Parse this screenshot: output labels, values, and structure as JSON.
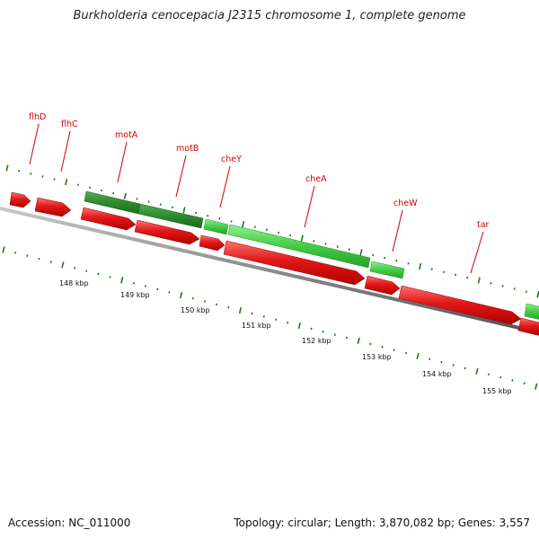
{
  "title": "Burkholderia cenocepacia J2315 chromosome 1, complete genome",
  "footer": {
    "accession": "Accession: NC_011000",
    "summary": "Topology: circular; Length: 3,870,082 bp; Genes: 3,557"
  },
  "colors": {
    "forward_dark": "#2f8a2f",
    "forward_light": "#44cc44",
    "reverse": "#e01818",
    "backbone": "#808080",
    "tick": "#1a7a1a",
    "label": "#d00000"
  },
  "kbp_labels": [
    "148 kbp",
    "149 kbp",
    "150 kbp",
    "151 kbp",
    "152 kbp",
    "153 kbp",
    "154 kbp",
    "155 kbp"
  ],
  "genes": [
    {
      "name": "flhD",
      "strand": "reverse"
    },
    {
      "name": "flhC",
      "strand": "reverse"
    },
    {
      "name": "motA",
      "strand": "forward"
    },
    {
      "name": "motB",
      "strand": "forward"
    },
    {
      "name": "cheY",
      "strand": "forward"
    },
    {
      "name": "cheA",
      "strand": "forward"
    },
    {
      "name": "cheW",
      "strand": "forward"
    },
    {
      "name": "tar",
      "strand": "reverse"
    }
  ]
}
